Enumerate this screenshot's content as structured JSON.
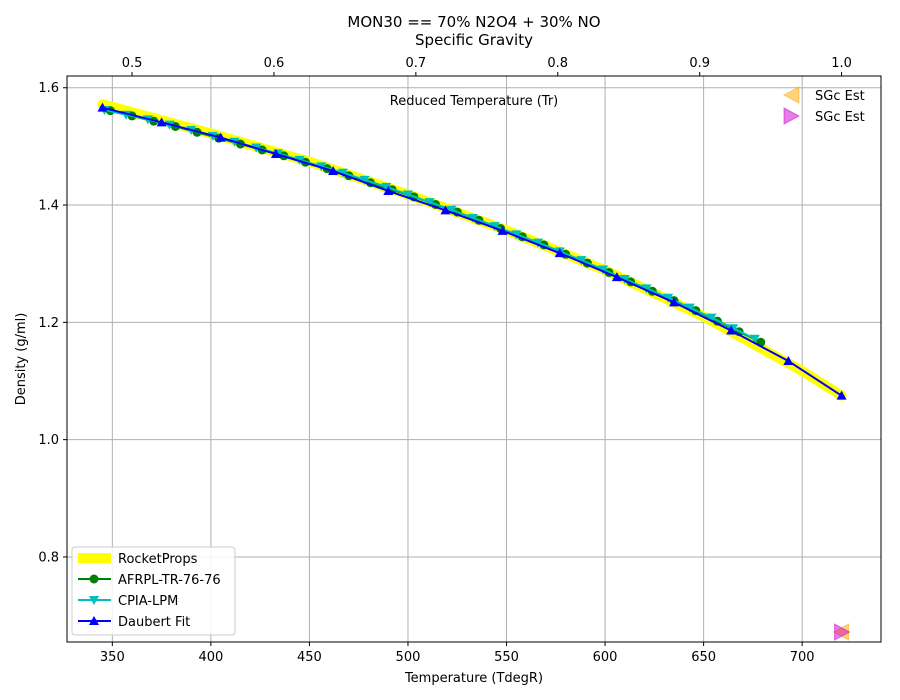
{
  "title_lines": [
    "MON30 == 70% N2O4 + 30% NO",
    "Specific Gravity"
  ],
  "chart_data": {
    "type": "line",
    "xlabel": "Temperature (TdegR)",
    "ylabel": "Density (g/ml)",
    "top_axis_note": "Reduced Temperature (Tr)",
    "xlim": [
      327,
      740
    ],
    "ylim": [
      0.655,
      1.62
    ],
    "xticks": [
      350,
      400,
      450,
      500,
      550,
      600,
      650,
      700
    ],
    "yticks": [
      0.8,
      1.0,
      1.2,
      1.4,
      1.6
    ],
    "yticklabels": [
      "0.8",
      "1.0",
      "1.2",
      "1.4",
      "1.6"
    ],
    "top_ticks": [
      0.5,
      0.6,
      0.7,
      0.8,
      0.9,
      1.0
    ],
    "Tc": 720,
    "grid": true,
    "legend_position": "lower left",
    "series": [
      {
        "name": "RocketProps",
        "color": "#ffff00",
        "marker": "none",
        "x": [
          345,
          400,
          450,
          500,
          550,
          600,
          650,
          700,
          720
        ],
        "y": [
          1.572,
          1.522,
          1.474,
          1.418,
          1.357,
          1.289,
          1.21,
          1.117,
          1.075
        ]
      },
      {
        "name": "AFRPL-TR-76-76",
        "color": "#008000",
        "marker": "circle",
        "x": [
          349,
          360,
          371,
          382,
          393,
          404,
          415,
          426,
          437,
          448,
          459,
          470,
          481,
          492,
          503,
          514,
          525,
          536,
          547,
          558,
          569,
          580,
          591,
          602,
          613,
          624,
          635,
          646,
          657,
          668,
          679
        ],
        "y": [
          1.561,
          1.552,
          1.543,
          1.534,
          1.524,
          1.514,
          1.504,
          1.494,
          1.484,
          1.473,
          1.462,
          1.45,
          1.438,
          1.426,
          1.414,
          1.401,
          1.388,
          1.374,
          1.36,
          1.346,
          1.332,
          1.316,
          1.301,
          1.285,
          1.269,
          1.253,
          1.237,
          1.22,
          1.202,
          1.184,
          1.166
        ]
      },
      {
        "name": "CPIA-LPM",
        "color": "#00bfbf",
        "marker": "triangle-down",
        "x": [
          346,
          357,
          368,
          379,
          390,
          401,
          412,
          423,
          434,
          445,
          456,
          467,
          478,
          489,
          500,
          511,
          522,
          533,
          544,
          555,
          566,
          577,
          588,
          599,
          610,
          621,
          632,
          643,
          654,
          665,
          676
        ],
        "y": [
          1.562,
          1.554,
          1.546,
          1.537,
          1.528,
          1.518,
          1.508,
          1.498,
          1.488,
          1.477,
          1.466,
          1.455,
          1.443,
          1.431,
          1.418,
          1.405,
          1.392,
          1.378,
          1.364,
          1.35,
          1.336,
          1.321,
          1.306,
          1.29,
          1.274,
          1.258,
          1.242,
          1.225,
          1.208,
          1.19,
          1.172
        ]
      },
      {
        "name": "Daubert Fit",
        "color": "#0000ff",
        "marker": "triangle-up",
        "x": [
          345,
          375,
          405,
          433,
          462,
          490,
          519,
          548,
          577,
          606,
          635,
          664,
          693,
          720
        ],
        "y": [
          1.566,
          1.541,
          1.515,
          1.487,
          1.458,
          1.424,
          1.391,
          1.356,
          1.318,
          1.277,
          1.234,
          1.186,
          1.134,
          1.075
        ]
      }
    ],
    "estimates": [
      {
        "name": "SGc Est",
        "color": "#ffa500",
        "marker": "triangle-left",
        "x": 720,
        "y": 0.672
      },
      {
        "name": "SGc Est",
        "color": "#cc00cc",
        "marker": "triangle-right",
        "x": 720,
        "y": 0.672
      }
    ]
  }
}
